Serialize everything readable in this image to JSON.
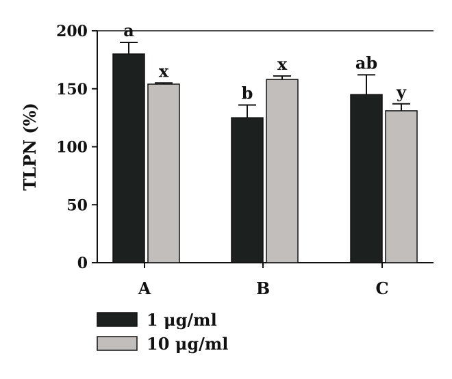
{
  "chart_data": {
    "type": "bar",
    "title": "",
    "xlabel": "",
    "ylabel": "TLPN (%)",
    "ylim": [
      0,
      200
    ],
    "yticks": [
      0,
      50,
      100,
      150,
      200
    ],
    "categories": [
      "A",
      "B",
      "C"
    ],
    "grid": false,
    "legend_position": "bottom-left",
    "series": [
      {
        "name": "1 μg/ml",
        "color": "#1c201e",
        "values": [
          180,
          125,
          145
        ],
        "errors": [
          10,
          11,
          17
        ],
        "sig_labels": [
          "a",
          "b",
          "ab"
        ]
      },
      {
        "name": "10 μg/ml",
        "color": "#c2bebb",
        "values": [
          154,
          158,
          131
        ],
        "errors": [
          1,
          3,
          6
        ],
        "sig_labels": [
          "x",
          "x",
          "y"
        ]
      }
    ]
  }
}
